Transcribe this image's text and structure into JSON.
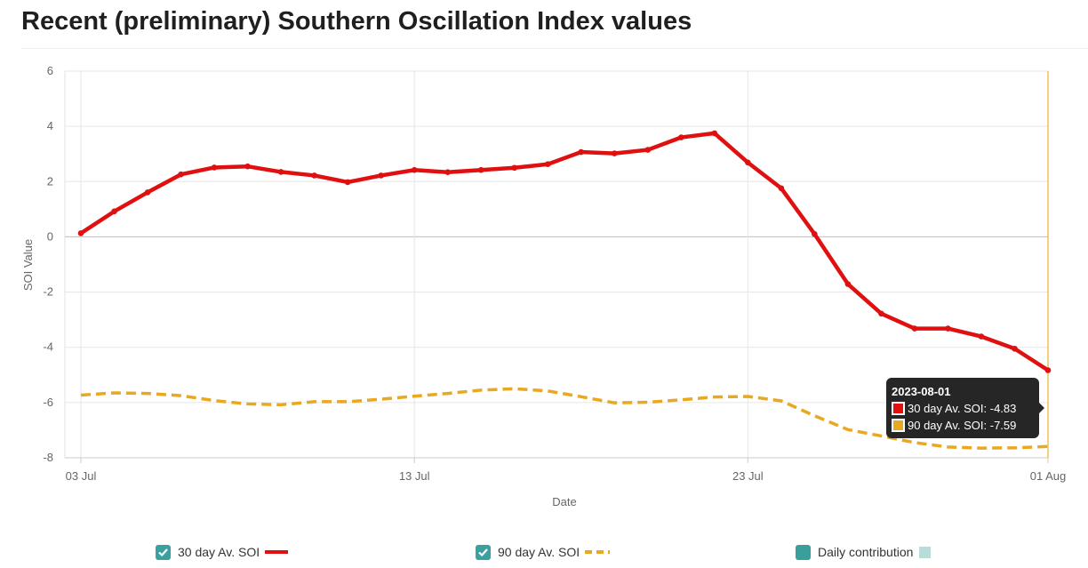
{
  "title": "Recent (preliminary) Southern Oscillation Index values",
  "colors": {
    "soi30": "#e01010",
    "soi90": "#e8a820",
    "daily": "#3a9e9a",
    "daily_swatch": "#b8dcd8",
    "checkbox": "#3aa0a0",
    "grid": "#e6e6e6",
    "zero": "#bdbdbd",
    "crosshair": "#e8b030"
  },
  "legend": {
    "item1": "30 day Av. SOI",
    "item2": "90 day Av. SOI",
    "item3": "Daily contribution"
  },
  "tooltip": {
    "date": "2023-08-01",
    "line1": "30 day Av. SOI: -4.83",
    "line2": "90 day Av. SOI: -7.59"
  },
  "chart_data": {
    "type": "line",
    "title": "Recent (preliminary) Southern Oscillation Index values",
    "xlabel": "Date",
    "ylabel": "SOI Value",
    "ylim": [
      -8,
      6
    ],
    "yticks": [
      6,
      4,
      2,
      0,
      -2,
      -4,
      -6,
      -8
    ],
    "xticks": [
      {
        "label": "03 Jul",
        "day": 0
      },
      {
        "label": "13 Jul",
        "day": 10
      },
      {
        "label": "23 Jul",
        "day": 20
      },
      {
        "label": "01 Aug",
        "day": 29
      }
    ],
    "x_start": "2023-07-03",
    "x_end": "2023-08-01",
    "series": [
      {
        "name": "30 day Av. SOI",
        "style": "solid",
        "markers": true,
        "values": [
          0.13,
          0.92,
          1.61,
          2.26,
          2.51,
          2.55,
          2.35,
          2.22,
          1.98,
          2.22,
          2.42,
          2.34,
          2.42,
          2.5,
          2.63,
          3.07,
          3.02,
          3.15,
          3.6,
          3.75,
          2.69,
          1.76,
          0.1,
          -1.71,
          -2.78,
          -3.32,
          -3.32,
          -3.61,
          -4.05,
          -4.83
        ]
      },
      {
        "name": "90 day Av. SOI",
        "style": "dashed",
        "markers": false,
        "values": [
          -5.73,
          -5.65,
          -5.67,
          -5.75,
          -5.93,
          -6.05,
          -6.08,
          -5.97,
          -5.97,
          -5.88,
          -5.77,
          -5.67,
          -5.55,
          -5.5,
          -5.58,
          -5.79,
          -6.01,
          -5.99,
          -5.9,
          -5.8,
          -5.78,
          -5.94,
          -6.48,
          -6.98,
          -7.21,
          -7.45,
          -7.61,
          -7.65,
          -7.64,
          -7.59
        ]
      }
    ],
    "legend_position": "bottom"
  }
}
